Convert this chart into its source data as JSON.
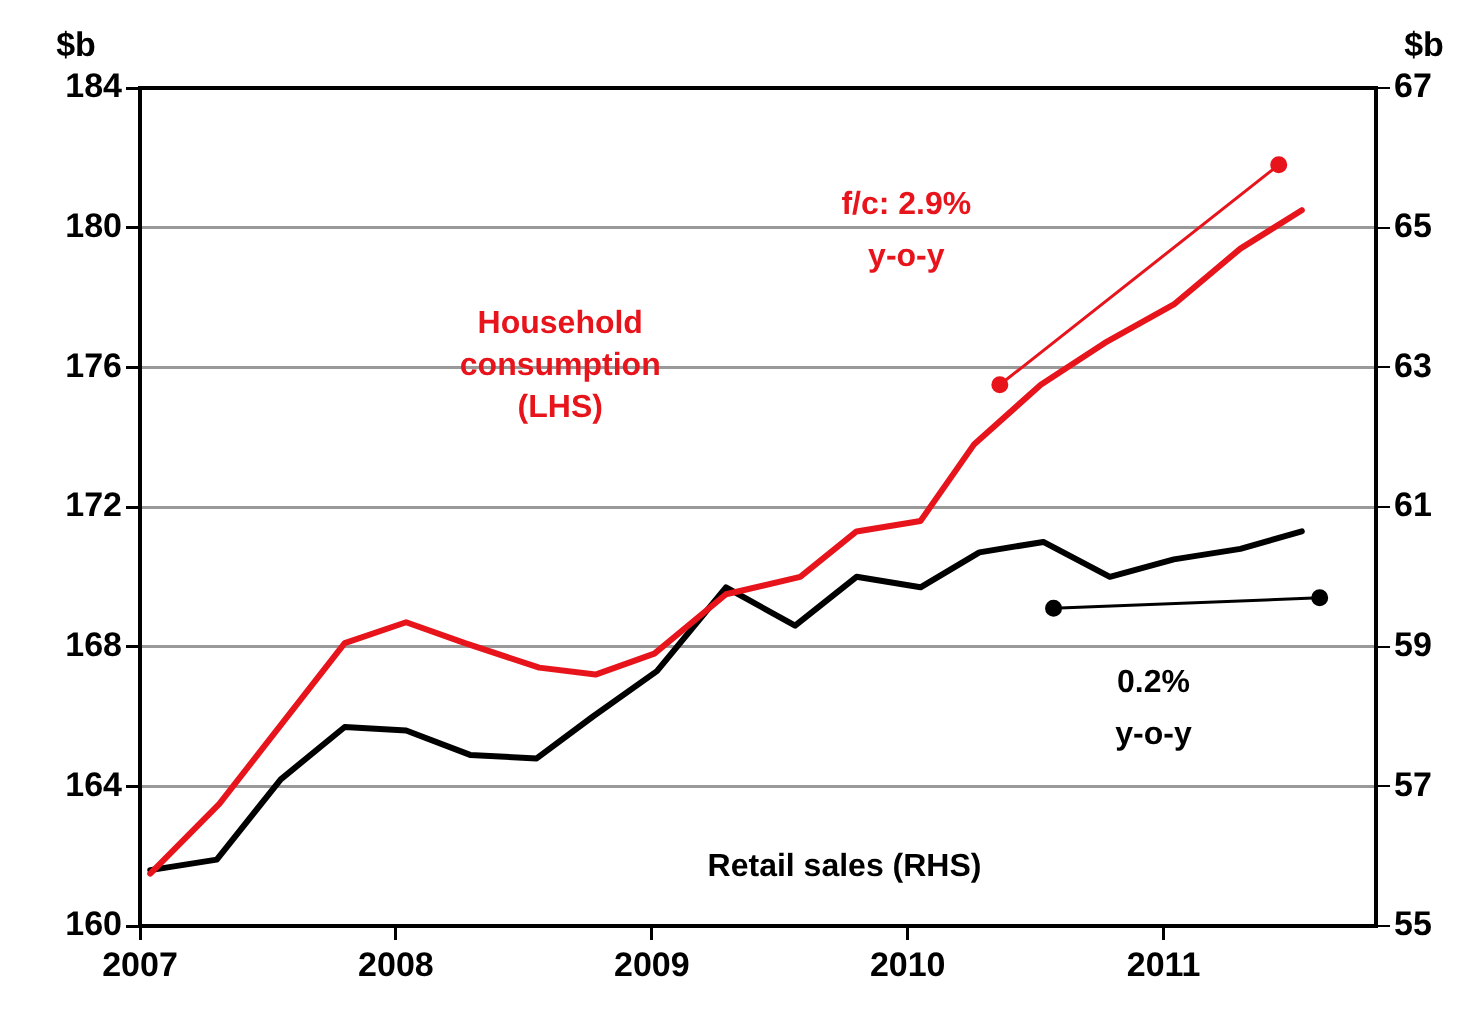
{
  "chart_data": {
    "type": "line",
    "ylabel": "$b",
    "y2label": "$b",
    "xlim": [
      2007,
      2011.83
    ],
    "xticks": [
      2007,
      2008,
      2009,
      2010,
      2011
    ],
    "ylim": [
      160,
      184
    ],
    "yticks": [
      160,
      164,
      168,
      172,
      176,
      180,
      184
    ],
    "y2lim": [
      55,
      67
    ],
    "y2ticks": [
      55,
      57,
      59,
      61,
      63,
      65,
      67
    ],
    "grid": "y",
    "legend": false,
    "marker": "none",
    "line_style": "solid",
    "series": [
      {
        "name": "Household consumption (LHS)",
        "color": "#e8141c",
        "x": [
          2007.04,
          2007.31,
          2007.8,
          2008.04,
          2008.27,
          2008.56,
          2008.78,
          2009.01,
          2009.29,
          2009.58,
          2009.8,
          2010.05,
          2010.26,
          2010.52,
          2010.77,
          2011.04,
          2011.3,
          2011.54
        ],
        "values": [
          161.5,
          163.5,
          168.1,
          168.7,
          168.1,
          167.4,
          167.2,
          167.8,
          169.5,
          170.0,
          171.3,
          171.6,
          173.8,
          175.5,
          176.7,
          177.8,
          179.4,
          180.5
        ]
      },
      {
        "name": "Retail sales (RHS)",
        "color": "#000000",
        "axis": "y2",
        "x": [
          2007.04,
          2007.3,
          2007.55,
          2007.8,
          2008.04,
          2008.29,
          2008.55,
          2008.77,
          2009.02,
          2009.29,
          2009.56,
          2009.8,
          2010.05,
          2010.28,
          2010.53,
          2010.79,
          2011.04,
          2011.3,
          2011.54
        ],
        "values": [
          55.8,
          55.95,
          57.1,
          57.85,
          57.8,
          57.45,
          57.4,
          58.0,
          58.65,
          59.85,
          59.3,
          60.0,
          59.85,
          60.35,
          60.5,
          60.0,
          60.25,
          60.4,
          60.65
        ]
      },
      {
        "color": "#e8141c",
        "marker": "circle",
        "x": [
          2010.36,
          2011.45
        ],
        "values": [
          175.5,
          181.8
        ]
      },
      {
        "color": "#000000",
        "marker": "circle",
        "axis": "y2",
        "x": [
          2010.57,
          2011.61
        ],
        "values": [
          59.55,
          59.7
        ]
      }
    ],
    "annotations": [
      "f/c: 2.9%\ny-o-y",
      "0.2%\ny-o-y"
    ]
  }
}
